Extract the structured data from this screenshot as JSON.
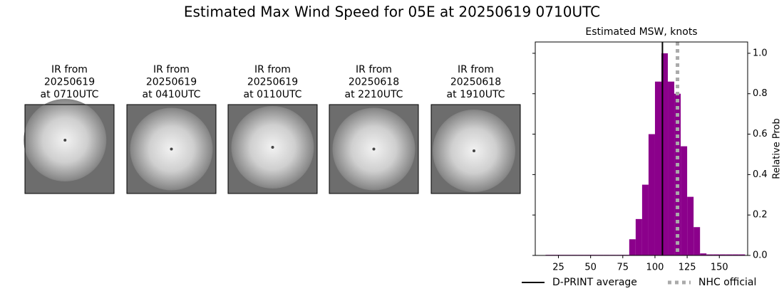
{
  "title": "Estimated Max Wind Speed for 05E at 20250619 0710UTC",
  "panels": [
    {
      "title": [
        "IR from",
        "20250619",
        "at 0710UTC"
      ]
    },
    {
      "title": [
        "IR from",
        "20250619",
        "at 0410UTC"
      ]
    },
    {
      "title": [
        "IR from",
        "20250619",
        "at 0110UTC"
      ]
    },
    {
      "title": [
        "IR from",
        "20250618",
        "at 2210UTC"
      ]
    },
    {
      "title": [
        "IR from",
        "20250618",
        "at 1910UTC"
      ]
    }
  ],
  "chart_data": {
    "type": "histogram",
    "title": "Estimated MSW, knots",
    "ylabel": "Relative Prob",
    "bins": [
      15,
      20,
      25,
      30,
      35,
      40,
      45,
      50,
      55,
      60,
      65,
      70,
      75,
      80,
      85,
      90,
      95,
      100,
      105,
      110,
      115,
      120,
      125,
      130,
      135,
      140,
      145,
      150,
      155,
      160,
      165,
      170
    ],
    "values": [
      0.003,
      0.003,
      0.003,
      0.003,
      0.003,
      0.003,
      0.003,
      0.003,
      0.003,
      0.003,
      0.003,
      0.003,
      0.003,
      0.08,
      0.18,
      0.35,
      0.6,
      0.86,
      1.0,
      0.86,
      0.8,
      0.54,
      0.29,
      0.14,
      0.01,
      0.005,
      0.005,
      0.005,
      0.005,
      0.005,
      0.005
    ],
    "color": "#8b008b",
    "xlim": [
      7,
      172
    ],
    "xticks": [
      25,
      50,
      75,
      100,
      125,
      150
    ],
    "ylim": [
      0,
      1.056
    ],
    "yticks": [
      {
        "value": 0,
        "label": "0.0"
      },
      0.2,
      0.4,
      0.6,
      0.8,
      {
        "value": 1,
        "label": "1.0"
      }
    ],
    "y_axis_side": "right",
    "lines": [
      {
        "name": "D-PRINT average",
        "value": 105.8,
        "color": "#000000",
        "style": "solid"
      },
      {
        "name": "NHC official",
        "value": 117.5,
        "color": "#aaaaaa",
        "style": "dotted"
      }
    ]
  }
}
